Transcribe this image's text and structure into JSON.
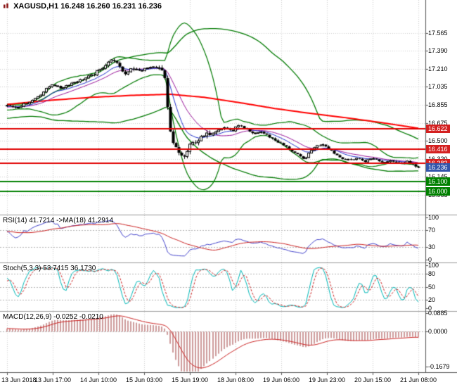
{
  "window": {
    "app_label": "MetaTrader chart window",
    "symbol": "XAGUSD",
    "timeframe": "H1"
  },
  "colors": {
    "background": "#ffffff",
    "grid": "#cfcfcf",
    "separator": "#9a9a9a",
    "axis_line": "#555555",
    "candle_up_fill": "#ffffff",
    "candle_down_fill": "#000000",
    "candle_outline": "#000000",
    "bollinger": "#007a00",
    "ma_slow_red": "#ff0000",
    "ma_fast_blue": "#2233cc",
    "ma_mid_purple": "#991499",
    "level_red": "#e00000",
    "level_green": "#008000",
    "badge_red": "#d42020",
    "badge_blue": "#3355aa",
    "badge_green": "#008000",
    "rsi_line": "#4444cc",
    "rsi_ma_line": "#cc2222",
    "stoch_k": "#00b8b8",
    "stoch_d": "#cc2222",
    "macd_hist": "#ce9c9c",
    "macd_signal": "#cc2222",
    "indicator_level": "#b4b4b4",
    "text": "#000000"
  },
  "chart_data": [
    {
      "type": "candlestick",
      "symbol": "XAGUSD",
      "timeframe": "H1",
      "title": "XAGUSD,H1 16.248 16.260 16.231 16.236",
      "ohlc": {
        "open": "16.248",
        "high": "16.260",
        "low": "16.231",
        "close": "16.236"
      },
      "y_ticks": [
        "17.565",
        "17.390",
        "17.210",
        "17.035",
        "16.855",
        "16.675",
        "16.500",
        "16.320",
        "16.145",
        "15.965"
      ],
      "y_tick_values": [
        17.565,
        17.39,
        17.21,
        17.035,
        16.855,
        16.675,
        16.5,
        16.32,
        16.145,
        15.965
      ],
      "y_range": [
        15.78,
        17.89
      ],
      "x_labels": [
        "13 Jun 2018",
        "13 Jun 17:00",
        "14 Jun 10:00",
        "15 Jun 03:00",
        "15 Jun 19:00",
        "18 Jun 08:00",
        "19 Jun 06:00",
        "19 Jun 23:00",
        "20 Jun 15:00",
        "21 Jun 08:00"
      ],
      "candle_count": 147,
      "close_path": [
        [
          0,
          16.85
        ],
        [
          3,
          16.83
        ],
        [
          6,
          16.86
        ],
        [
          9,
          16.9
        ],
        [
          12,
          16.96
        ],
        [
          16,
          17.06
        ],
        [
          19,
          17.02
        ],
        [
          23,
          17.07
        ],
        [
          26,
          17.1
        ],
        [
          30,
          17.14
        ],
        [
          33,
          17.2
        ],
        [
          36,
          17.28
        ],
        [
          38,
          17.3
        ],
        [
          40,
          17.22
        ],
        [
          42,
          17.16
        ],
        [
          44,
          17.22
        ],
        [
          47,
          17.19
        ],
        [
          50,
          17.22
        ],
        [
          53,
          17.23
        ],
        [
          55,
          17.19
        ],
        [
          56,
          17.1
        ],
        [
          57,
          16.82
        ],
        [
          58,
          16.58
        ],
        [
          59,
          16.47
        ],
        [
          61,
          16.38
        ],
        [
          63,
          16.34
        ],
        [
          65,
          16.45
        ],
        [
          67,
          16.5
        ],
        [
          68,
          16.51
        ],
        [
          71,
          16.56
        ],
        [
          74,
          16.61
        ],
        [
          77,
          16.63
        ],
        [
          80,
          16.6
        ],
        [
          82,
          16.66
        ],
        [
          84,
          16.62
        ],
        [
          87,
          16.57
        ],
        [
          90,
          16.59
        ],
        [
          93,
          16.54
        ],
        [
          96,
          16.49
        ],
        [
          99,
          16.44
        ],
        [
          102,
          16.38
        ],
        [
          105,
          16.32
        ],
        [
          107,
          16.37
        ],
        [
          109,
          16.44
        ],
        [
          112,
          16.47
        ],
        [
          114,
          16.43
        ],
        [
          116,
          16.38
        ],
        [
          118,
          16.34
        ],
        [
          121,
          16.31
        ],
        [
          124,
          16.33
        ],
        [
          127,
          16.3
        ],
        [
          130,
          16.33
        ],
        [
          133,
          16.29
        ],
        [
          136,
          16.31
        ],
        [
          139,
          16.28
        ],
        [
          142,
          16.3
        ],
        [
          144,
          16.26
        ],
        [
          146,
          16.236
        ]
      ],
      "ma_red_path": [
        [
          0,
          16.86
        ],
        [
          15,
          16.9
        ],
        [
          30,
          16.93
        ],
        [
          45,
          16.95
        ],
        [
          58,
          16.96
        ],
        [
          70,
          16.93
        ],
        [
          82,
          16.88
        ],
        [
          95,
          16.82
        ],
        [
          108,
          16.77
        ],
        [
          120,
          16.73
        ],
        [
          133,
          16.68
        ],
        [
          146,
          16.625
        ]
      ],
      "levels": [
        {
          "price": 16.622,
          "label": "16.622",
          "style": "red",
          "line": true
        },
        {
          "price": 16.416,
          "label": "16.416",
          "style": "red",
          "line": true
        },
        {
          "price": 16.282,
          "label": "16.282",
          "style": "red",
          "line": true
        },
        {
          "price": 16.236,
          "label": "16.236",
          "style": "blue",
          "line": false
        },
        {
          "price": 16.1,
          "label": "16.100",
          "style": "green",
          "line": true
        },
        {
          "price": 16.0,
          "label": "16.000",
          "style": "green",
          "line": true
        }
      ],
      "overlays": {
        "bollinger_fast": [
          20,
          2
        ],
        "bollinger_slow": [
          55,
          2
        ],
        "ema_fast": 10,
        "lwma_mid": 24
      }
    },
    {
      "type": "line",
      "name": "RSI",
      "title": "RSI(14) 41.7214  ->MA(18) 41.2914",
      "params": {
        "period": 14,
        "ma_period": 18
      },
      "last_values": {
        "rsi": "41.7214",
        "ma": "41.2914"
      },
      "y_ticks": [
        "100",
        "70",
        "30",
        "0"
      ],
      "y_tick_values": [
        100,
        70,
        30,
        0
      ],
      "levels": [
        70,
        30
      ],
      "y_range": [
        0,
        100
      ]
    },
    {
      "type": "line",
      "name": "Stochastic",
      "title": "Stoch(5,3,3) 53.7415 36.1730",
      "params": {
        "k": 5,
        "d": 3,
        "slowing": 3
      },
      "last_values": {
        "k": "53.7415",
        "d": "36.1730"
      },
      "y_ticks": [
        "100",
        "80",
        "50",
        "20",
        "0"
      ],
      "y_tick_values": [
        100,
        80,
        50,
        20,
        0
      ],
      "levels": [
        80,
        50,
        20
      ],
      "y_range": [
        0,
        100
      ]
    },
    {
      "type": "macd",
      "name": "MACD",
      "title": "MACD(12,26,9) -0.0252 -0.0210",
      "params": {
        "fast": 12,
        "slow": 26,
        "signal": 9
      },
      "last_values": {
        "macd": "-0.0252",
        "signal": "-0.0210"
      },
      "y_ticks": [
        "0.0885",
        "0.0000",
        "-0.1679"
      ],
      "y_tick_values": [
        0.0885,
        0,
        -0.1679
      ],
      "levels": [
        0
      ],
      "y_range": [
        -0.19,
        0.095
      ]
    }
  ]
}
